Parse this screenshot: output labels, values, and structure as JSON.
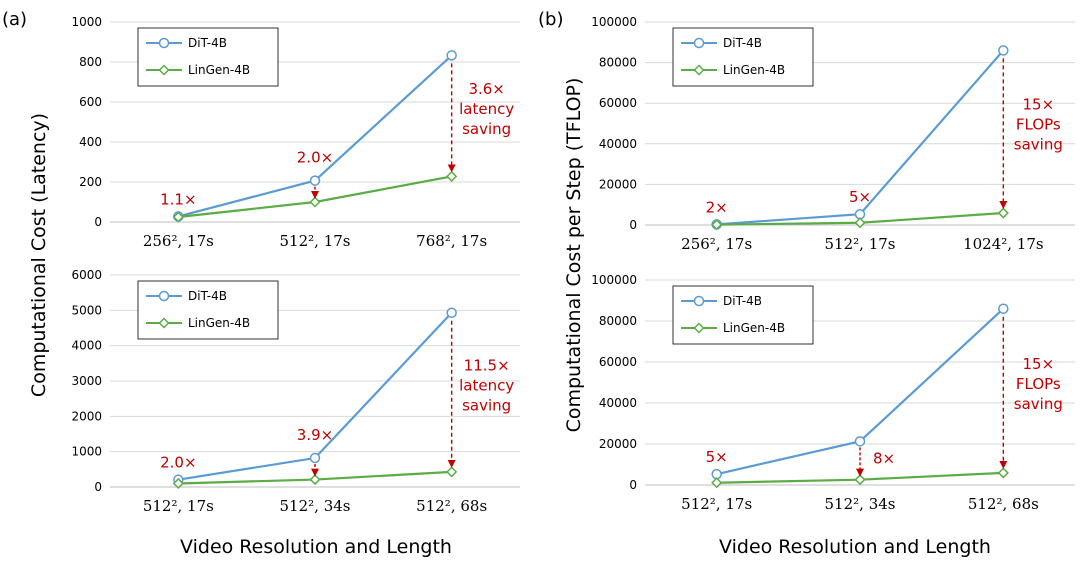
{
  "panel_labels": [
    "(a)",
    "(b)"
  ],
  "ylabel_left": "Computational Cost (Latency)",
  "ylabel_right": "Computational Cost per Step (TFLOP)",
  "xlabel_left": "Video Resolution and Length",
  "xlabel_right": "Video Resolution and Length",
  "colors": {
    "dit": "#5b9bd5",
    "lingen": "#5aac44",
    "annotation": "#c00000",
    "grid": "#d9d9d9"
  },
  "chart_data": [
    {
      "type": "line",
      "categories": [
        "256², 17s",
        "512², 17s",
        "768², 17s"
      ],
      "series": [
        {
          "name": "DiT-4B",
          "values": [
            28,
            207,
            833
          ]
        },
        {
          "name": "LinGen-4B",
          "values": [
            25,
            100,
            228
          ]
        }
      ],
      "ylim": [
        0,
        1000
      ],
      "yticks": [
        0,
        200,
        400,
        600,
        800,
        1000
      ],
      "grid": true,
      "legend": "top-left",
      "annotations": [
        {
          "category": 0,
          "lines": [
            "1.1×"
          ],
          "arrow": false
        },
        {
          "category": 1,
          "lines": [
            "2.0×"
          ],
          "arrow": true
        },
        {
          "category": 2,
          "lines": [
            "3.6×",
            "latency",
            "saving"
          ],
          "arrow": true
        }
      ]
    },
    {
      "type": "line",
      "categories": [
        "256², 17s",
        "512², 17s",
        "1024², 17s"
      ],
      "series": [
        {
          "name": "DiT-4B",
          "values": [
            300,
            5300,
            86000
          ]
        },
        {
          "name": "LinGen-4B",
          "values": [
            150,
            1100,
            5900
          ]
        }
      ],
      "ylim": [
        0,
        100000
      ],
      "yticks": [
        0,
        20000,
        40000,
        60000,
        80000,
        100000
      ],
      "grid": true,
      "legend": "top-left",
      "annotations": [
        {
          "category": 0,
          "lines": [
            "2×"
          ],
          "arrow": false
        },
        {
          "category": 1,
          "lines": [
            "5×"
          ],
          "arrow": false
        },
        {
          "category": 2,
          "lines": [
            "15×",
            "FLOPs",
            "saving"
          ],
          "arrow": true
        }
      ]
    },
    {
      "type": "line",
      "categories": [
        "512², 17s",
        "512², 34s",
        "512², 68s"
      ],
      "series": [
        {
          "name": "DiT-4B",
          "values": [
            207,
            820,
            4930
          ]
        },
        {
          "name": "LinGen-4B",
          "values": [
            100,
            210,
            428
          ]
        }
      ],
      "ylim": [
        0,
        6000
      ],
      "yticks": [
        0,
        1000,
        2000,
        3000,
        4000,
        5000,
        6000
      ],
      "grid": true,
      "legend": "top-left",
      "annotations": [
        {
          "category": 0,
          "lines": [
            "2.0×"
          ],
          "arrow": false
        },
        {
          "category": 1,
          "lines": [
            "3.9×"
          ],
          "arrow": true
        },
        {
          "category": 2,
          "lines": [
            "11.5×",
            "latency",
            "saving"
          ],
          "arrow": true
        }
      ]
    },
    {
      "type": "line",
      "categories": [
        "512², 17s",
        "512², 34s",
        "512², 68s"
      ],
      "series": [
        {
          "name": "DiT-4B",
          "values": [
            5300,
            21300,
            86000
          ]
        },
        {
          "name": "LinGen-4B",
          "values": [
            1100,
            2600,
            5900
          ]
        }
      ],
      "ylim": [
        0,
        100000
      ],
      "yticks": [
        0,
        20000,
        40000,
        60000,
        80000,
        100000
      ],
      "grid": true,
      "legend": "top-left",
      "annotations": [
        {
          "category": 0,
          "lines": [
            "5×"
          ],
          "arrow": false
        },
        {
          "category": 1,
          "lines": [
            "8×"
          ],
          "arrow": true
        },
        {
          "category": 2,
          "lines": [
            "15×",
            "FLOPs",
            "saving"
          ],
          "arrow": true
        }
      ]
    }
  ]
}
